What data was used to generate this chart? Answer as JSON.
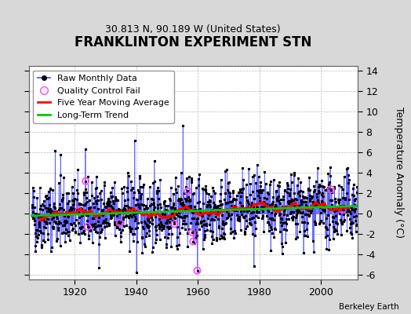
{
  "title": "FRANKLINTON EXPERIMENT STN",
  "subtitle": "30.813 N, 90.189 W (United States)",
  "ylabel": "Temperature Anomaly (°C)",
  "watermark": "Berkeley Earth",
  "xlim": [
    1905,
    2012
  ],
  "ylim": [
    -6.5,
    14.5
  ],
  "yticks": [
    -6,
    -4,
    -2,
    0,
    2,
    4,
    6,
    8,
    10,
    12,
    14
  ],
  "xticks": [
    1920,
    1940,
    1960,
    1980,
    2000
  ],
  "start_year": 1906,
  "end_year": 2011,
  "bg_color": "#d8d8d8",
  "plot_bg_color": "#ffffff",
  "raw_line_color": "#4444ff",
  "raw_marker_color": "#000000",
  "qc_fail_color": "#ff44ff",
  "moving_avg_color": "#ff0000",
  "trend_color": "#00cc00",
  "grid_color": "#bbbbbb",
  "title_fontsize": 12,
  "subtitle_fontsize": 9,
  "tick_fontsize": 9,
  "legend_fontsize": 8
}
